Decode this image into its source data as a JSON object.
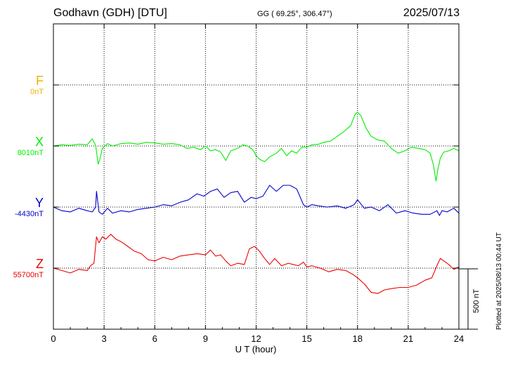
{
  "header": {
    "station": "Godhavn (GDH)  [DTU]",
    "coords": "GG ( 69.25°, 306.47°)",
    "date": "2025/07/13"
  },
  "credit": "Plotted at 2025/08/13 00:44 UT",
  "chart_data": {
    "type": "line",
    "xlabel": "U T (hour)",
    "xlim": [
      0,
      24
    ],
    "xticks": [
      "0",
      "3",
      "6",
      "9",
      "12",
      "15",
      "18",
      "21",
      "24"
    ],
    "scale_bar": "500 nT",
    "grid": true,
    "components": [
      {
        "letter": "F",
        "baseline": "0nT",
        "color": "#f0b000",
        "values": []
      },
      {
        "letter": "X",
        "baseline": "8010nT",
        "color": "#00ee00",
        "x": [
          0,
          0.5,
          1,
          1.5,
          2,
          2.3,
          2.5,
          2.65,
          2.75,
          2.9,
          3.2,
          3.5,
          4,
          4.5,
          5,
          5.5,
          6,
          6.5,
          7,
          7.5,
          7.9,
          8.3,
          8.7,
          9,
          9.3,
          9.6,
          9.9,
          10.2,
          10.5,
          10.9,
          11.2,
          11.5,
          11.8,
          12.0,
          12.2,
          12.5,
          12.8,
          13.2,
          13.5,
          13.8,
          14.1,
          14.4,
          14.7,
          15.0,
          15.3,
          15.7,
          16.0,
          16.4,
          16.8,
          17.2,
          17.6,
          17.85,
          18.0,
          18.2,
          18.5,
          18.8,
          19.2,
          19.6,
          20.0,
          20.4,
          20.8,
          21.2,
          21.6,
          22.0,
          22.3,
          22.5,
          22.65,
          22.75,
          22.9,
          23.1,
          23.4,
          23.7,
          24.0
        ],
        "values": [
          0,
          10,
          5,
          15,
          10,
          60,
          5,
          -150,
          -110,
          -20,
          20,
          0,
          20,
          25,
          15,
          30,
          25,
          15,
          20,
          10,
          -20,
          -10,
          -30,
          0,
          -40,
          -30,
          -50,
          -120,
          -40,
          -20,
          10,
          0,
          -30,
          -80,
          -110,
          -130,
          -90,
          -60,
          -20,
          -80,
          -40,
          -60,
          -10,
          -10,
          10,
          15,
          30,
          40,
          80,
          120,
          170,
          260,
          280,
          250,
          150,
          80,
          50,
          40,
          -20,
          -60,
          -40,
          -10,
          -20,
          -30,
          -60,
          -160,
          -290,
          -200,
          -100,
          -50,
          -40,
          -20,
          -40
        ]
      },
      {
        "letter": "Y",
        "baseline": "-4430nT",
        "color": "#0000cc",
        "x": [
          0,
          0.5,
          1,
          1.5,
          2,
          2.3,
          2.5,
          2.55,
          2.7,
          2.9,
          3.2,
          3.5,
          4,
          4.5,
          5,
          5.5,
          6,
          6.5,
          7,
          7.5,
          8,
          8.5,
          8.9,
          9.3,
          9.7,
          10.1,
          10.5,
          10.9,
          11.3,
          11.7,
          12.0,
          12.4,
          12.8,
          13.2,
          13.6,
          14.0,
          14.4,
          14.8,
          15.0,
          15.3,
          15.7,
          16.2,
          16.8,
          17.3,
          17.8,
          18.0,
          18.4,
          18.8,
          19.3,
          19.8,
          20.3,
          20.8,
          21.3,
          21.8,
          22.3,
          22.7,
          22.85,
          23.0,
          23.3,
          23.7,
          24.0
        ],
        "values": [
          0,
          -30,
          -40,
          -10,
          -30,
          -40,
          0,
          130,
          -40,
          -60,
          -10,
          -50,
          -30,
          -40,
          -20,
          -10,
          0,
          20,
          10,
          40,
          60,
          110,
          90,
          130,
          150,
          80,
          120,
          130,
          40,
          80,
          70,
          90,
          180,
          130,
          180,
          180,
          150,
          20,
          0,
          20,
          10,
          0,
          10,
          -10,
          20,
          60,
          -10,
          0,
          -30,
          20,
          -50,
          -30,
          -50,
          -60,
          -60,
          -30,
          -70,
          -30,
          -40,
          -10,
          -50
        ]
      },
      {
        "letter": "Z",
        "baseline": "55700nT",
        "color": "#ee0000",
        "x": [
          0,
          0.5,
          1,
          1.5,
          2,
          2.2,
          2.4,
          2.55,
          2.7,
          2.9,
          3.1,
          3.4,
          3.7,
          4.0,
          4.4,
          4.8,
          5.2,
          5.6,
          6.0,
          6.5,
          7.0,
          7.5,
          8.0,
          8.5,
          9.0,
          9.3,
          9.6,
          9.9,
          10.2,
          10.5,
          10.9,
          11.3,
          11.6,
          11.9,
          12.2,
          12.5,
          12.8,
          13.1,
          13.5,
          13.9,
          14.2,
          14.5,
          14.8,
          15.0,
          15.3,
          15.8,
          16.3,
          16.8,
          17.3,
          17.7,
          18.0,
          18.4,
          18.8,
          19.2,
          19.6,
          20.0,
          20.5,
          21.0,
          21.5,
          22.0,
          22.4,
          22.7,
          22.9,
          23.1,
          23.4,
          23.7,
          24.0
        ],
        "values": [
          0,
          -20,
          -40,
          -10,
          -20,
          20,
          40,
          260,
          210,
          260,
          240,
          280,
          240,
          220,
          180,
          140,
          120,
          70,
          60,
          90,
          70,
          100,
          110,
          120,
          110,
          150,
          100,
          110,
          60,
          20,
          40,
          30,
          160,
          180,
          140,
          80,
          30,
          80,
          20,
          40,
          30,
          20,
          50,
          10,
          20,
          0,
          -30,
          -10,
          -20,
          -50,
          -80,
          -130,
          -200,
          -210,
          -180,
          -170,
          -160,
          -160,
          -140,
          -100,
          -80,
          20,
          80,
          60,
          30,
          -10,
          10
        ]
      }
    ]
  }
}
